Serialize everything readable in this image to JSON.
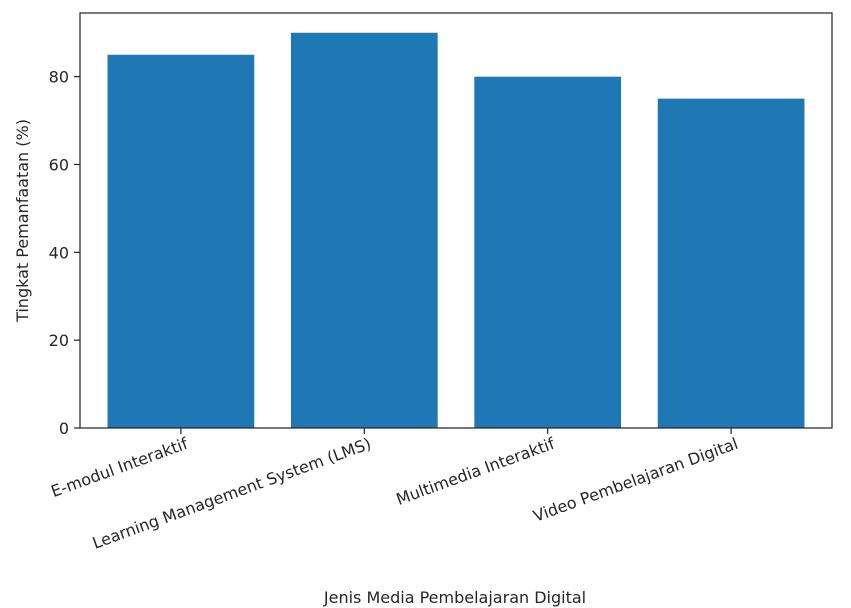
{
  "chart_data": {
    "type": "bar",
    "title": "",
    "xlabel": "Jenis Media Pembelajaran Digital",
    "ylabel": "Tingkat Pemanfaatan (%)",
    "categories": [
      "E-modul Interaktif",
      "Learning Management System (LMS)",
      "Multimedia Interaktif",
      "Video Pembelajaran Digital"
    ],
    "values": [
      85,
      90,
      80,
      75
    ],
    "ylim": [
      0,
      94.5
    ],
    "yticks": [
      0,
      20,
      40,
      60,
      80
    ],
    "grid": false,
    "legend": "none",
    "bar_color": "#1f77b4",
    "x_tick_rotation_deg": -20
  }
}
